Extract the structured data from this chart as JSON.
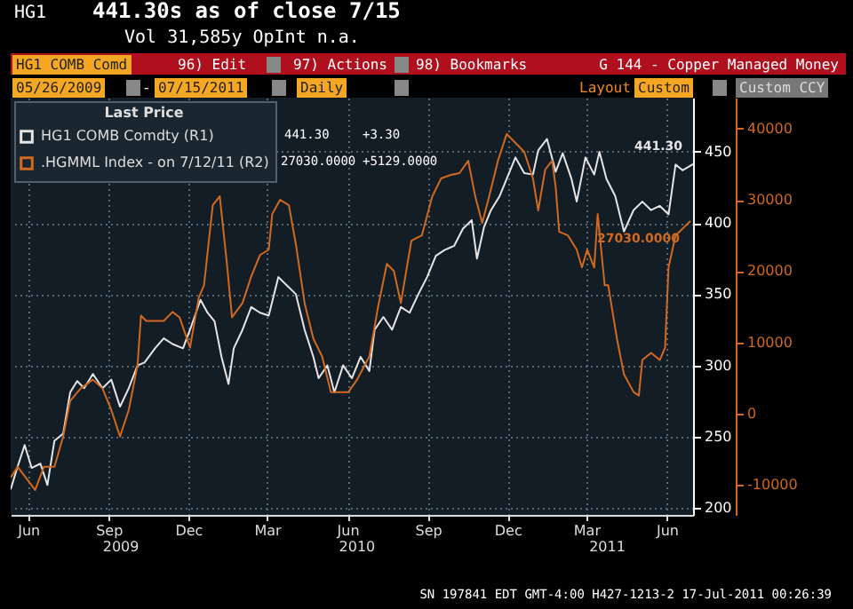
{
  "chart_data": {
    "type": "line",
    "title": "G 144 - Copper Managed Money",
    "legend_title": "Last Price",
    "legend": "top left",
    "grid": true,
    "xlim": [
      "2009-05-26",
      "2011-07-15"
    ],
    "xticks": [
      {
        "value": "2009-06-15",
        "label": "Jun"
      },
      {
        "value": "2009-09-15",
        "label": "Sep"
      },
      {
        "value": "2009-12-15",
        "label": "Dec"
      },
      {
        "value": "2010-03-15",
        "label": "Mar"
      },
      {
        "value": "2010-06-15",
        "label": "Jun"
      },
      {
        "value": "2010-09-15",
        "label": "Sep"
      },
      {
        "value": "2010-12-15",
        "label": "Dec"
      },
      {
        "value": "2011-03-15",
        "label": "Mar"
      },
      {
        "value": "2011-06-15",
        "label": "Jun"
      }
    ],
    "x2lim": [
      "2009-05-26",
      "2011-07-15"
    ],
    "x2ticks": [
      {
        "value": "2009-09-28",
        "label": "2009"
      },
      {
        "value": "2010-06-25",
        "label": "2010"
      },
      {
        "value": "2011-04-07",
        "label": "2011"
      }
    ],
    "ylim": [
      195,
      488
    ],
    "yticks": [
      200,
      250,
      300,
      350,
      400,
      450
    ],
    "y2lim": [
      -14250,
      44350
    ],
    "y2ticks": [
      -10000,
      0,
      10000,
      20000,
      30000,
      40000
    ],
    "series": [
      {
        "name": "HG1 COMB Comdty (R1)",
        "color": "#e6e6e6",
        "x": [
          "2009-05-26",
          "2009-06-03",
          "2009-06-11",
          "2009-06-19",
          "2009-06-29",
          "2009-07-07",
          "2009-07-15",
          "2009-07-25",
          "2009-08-02",
          "2009-08-10",
          "2009-08-18",
          "2009-08-28",
          "2009-09-08",
          "2009-09-18",
          "2009-09-28",
          "2009-10-08",
          "2009-10-18",
          "2009-10-26",
          "2009-11-07",
          "2009-11-17",
          "2009-11-27",
          "2009-12-09",
          "2009-12-17",
          "2009-12-29",
          "2010-01-06",
          "2010-01-14",
          "2010-01-22",
          "2010-01-30",
          "2010-02-05",
          "2010-02-15",
          "2010-02-25",
          "2010-03-07",
          "2010-03-17",
          "2010-03-28",
          "2010-04-07",
          "2010-04-17",
          "2010-04-27",
          "2010-05-07",
          "2010-05-13",
          "2010-05-23",
          "2010-05-31",
          "2010-06-10",
          "2010-06-20",
          "2010-06-30",
          "2010-07-10",
          "2010-07-16",
          "2010-07-26",
          "2010-08-05",
          "2010-08-15",
          "2010-08-25",
          "2010-09-04",
          "2010-09-14",
          "2010-09-24",
          "2010-10-04",
          "2010-10-15",
          "2010-10-25",
          "2010-11-04",
          "2010-11-10",
          "2010-11-18",
          "2010-11-26",
          "2010-12-06",
          "2010-12-14",
          "2010-12-24",
          "2011-01-03",
          "2011-01-13",
          "2011-01-19",
          "2011-01-29",
          "2011-02-08",
          "2011-02-16",
          "2011-02-26",
          "2011-03-04",
          "2011-03-14",
          "2011-03-24",
          "2011-03-30",
          "2011-04-07",
          "2011-04-17",
          "2011-04-27",
          "2011-05-08",
          "2011-05-18",
          "2011-05-28",
          "2011-06-07",
          "2011-06-17",
          "2011-06-25",
          "2011-07-03",
          "2011-07-15"
        ],
        "values": [
          213,
          229,
          244,
          228,
          231,
          216,
          247,
          252,
          281,
          289,
          284,
          294,
          284,
          290,
          271,
          284,
          300,
          302,
          312,
          319,
          315,
          312,
          325,
          346,
          337,
          331,
          306,
          287,
          312,
          325,
          341,
          337,
          335,
          362,
          356,
          350,
          325,
          306,
          291,
          300,
          281,
          300,
          291,
          306,
          296,
          325,
          334,
          325,
          341,
          337,
          350,
          362,
          377,
          381,
          384,
          396,
          402,
          375,
          397,
          409,
          419,
          431,
          446,
          435,
          434,
          451,
          459,
          436,
          449,
          431,
          415,
          446,
          434,
          450,
          431,
          419,
          394,
          409,
          415,
          409,
          412,
          406,
          441,
          437,
          441.3
        ],
        "value_labels": [
          null,
          null,
          null,
          null,
          null,
          null,
          null,
          null,
          null,
          null,
          null,
          null,
          null,
          null,
          null,
          null,
          null,
          null,
          null,
          null,
          null,
          null,
          null,
          null,
          null,
          null,
          null,
          null,
          null,
          null,
          null,
          null,
          null,
          null,
          null,
          null,
          null,
          null,
          null,
          null,
          null,
          null,
          null,
          null,
          null,
          null,
          null,
          null,
          null,
          null,
          null,
          null,
          null,
          null,
          null,
          null,
          null,
          null,
          null,
          null,
          null,
          null,
          null,
          null,
          null,
          null,
          null,
          null,
          null,
          null,
          null,
          null,
          null,
          null,
          null,
          null,
          null,
          null,
          null,
          null,
          null,
          null,
          null,
          null,
          "441.30"
        ]
      },
      {
        "name": ".HGMML Index - on 7/12/11 (R2)",
        "color": "#d2691e",
        "axis": "y2",
        "x": [
          "2009-05-26",
          "2009-06-03",
          "2009-06-23",
          "2009-07-03",
          "2009-07-15",
          "2009-07-25",
          "2009-08-02",
          "2009-08-14",
          "2009-08-28",
          "2009-09-08",
          "2009-09-18",
          "2009-09-28",
          "2009-10-08",
          "2009-10-18",
          "2009-10-22",
          "2009-10-28",
          "2009-11-07",
          "2009-11-17",
          "2009-11-27",
          "2009-12-05",
          "2009-12-17",
          "2009-12-27",
          "2010-01-02",
          "2010-01-12",
          "2010-01-20",
          "2010-01-28",
          "2010-02-03",
          "2010-02-15",
          "2010-02-25",
          "2010-03-07",
          "2010-03-17",
          "2010-03-21",
          "2010-03-30",
          "2010-04-09",
          "2010-04-17",
          "2010-04-27",
          "2010-05-07",
          "2010-05-17",
          "2010-05-27",
          "2010-06-02",
          "2010-06-16",
          "2010-06-26",
          "2010-07-10",
          "2010-07-20",
          "2010-07-30",
          "2010-08-07",
          "2010-08-15",
          "2010-08-27",
          "2010-09-08",
          "2010-09-20",
          "2010-09-30",
          "2010-10-11",
          "2010-10-21",
          "2010-10-31",
          "2010-11-08",
          "2010-11-16",
          "2010-11-24",
          "2010-12-04",
          "2010-12-14",
          "2010-12-24",
          "2011-01-03",
          "2011-01-13",
          "2011-01-19",
          "2011-01-27",
          "2011-02-04",
          "2011-02-08",
          "2011-02-12",
          "2011-02-22",
          "2011-03-04",
          "2011-03-10",
          "2011-03-16",
          "2011-03-24",
          "2011-03-28",
          "2011-04-05",
          "2011-04-09",
          "2011-04-19",
          "2011-04-27",
          "2011-05-08",
          "2011-05-14",
          "2011-05-18",
          "2011-05-28",
          "2011-06-07",
          "2011-06-13",
          "2011-06-17",
          "2011-06-25",
          "2011-07-12"
        ],
        "values": [
          -9000,
          -7500,
          -10750,
          -7500,
          -7500,
          -3250,
          1750,
          3500,
          4750,
          3500,
          500,
          -3250,
          500,
          6750,
          13750,
          13000,
          13000,
          13000,
          14250,
          13500,
          9250,
          16250,
          18000,
          29250,
          30500,
          21250,
          13500,
          15500,
          19250,
          22250,
          23000,
          28000,
          30000,
          29250,
          23750,
          15500,
          10500,
          8000,
          3000,
          3000,
          3000,
          4750,
          8000,
          15000,
          21000,
          20000,
          15500,
          24250,
          25000,
          30500,
          33000,
          33500,
          33750,
          35500,
          30500,
          26750,
          30500,
          35500,
          39250,
          38000,
          36750,
          33000,
          28500,
          34250,
          35500,
          31750,
          25500,
          25000,
          23000,
          20500,
          23000,
          20500,
          28000,
          18000,
          18000,
          10500,
          5500,
          3000,
          2500,
          7500,
          8500,
          7500,
          9250,
          20500,
          25000,
          27030
        ],
        "value_labels": [
          null,
          null,
          null,
          null,
          null,
          null,
          null,
          null,
          null,
          null,
          null,
          null,
          null,
          null,
          null,
          null,
          null,
          null,
          null,
          null,
          null,
          null,
          null,
          null,
          null,
          null,
          null,
          null,
          null,
          null,
          null,
          null,
          null,
          null,
          null,
          null,
          null,
          null,
          null,
          null,
          null,
          null,
          null,
          null,
          null,
          null,
          null,
          null,
          null,
          null,
          null,
          null,
          null,
          null,
          null,
          null,
          null,
          null,
          null,
          null,
          null,
          null,
          null,
          null,
          null,
          null,
          null,
          null,
          null,
          null,
          null,
          null,
          null,
          null,
          null,
          null,
          null,
          null,
          null,
          null,
          null,
          null,
          null,
          null,
          null,
          "27030.0000"
        ]
      }
    ],
    "annotations": [
      "HG1",
      "441.30s as of close 7/15",
      "Vol 31,585y OpInt n.a.",
      "HG1 COMB Comd",
      "96) Edit",
      "97) Actions",
      "98) Bookmarks",
      "05/26/2009",
      "-",
      "07/15/2011",
      "Daily",
      "Layout",
      "Custom",
      "Custom CCY",
      "441.30",
      "+3.30",
      "27030.0000",
      "+5129.0000",
      "SN 197841 EDT  GMT-4:00 H427-1213-2 17-Jul-2011 00:26:39"
    ]
  }
}
